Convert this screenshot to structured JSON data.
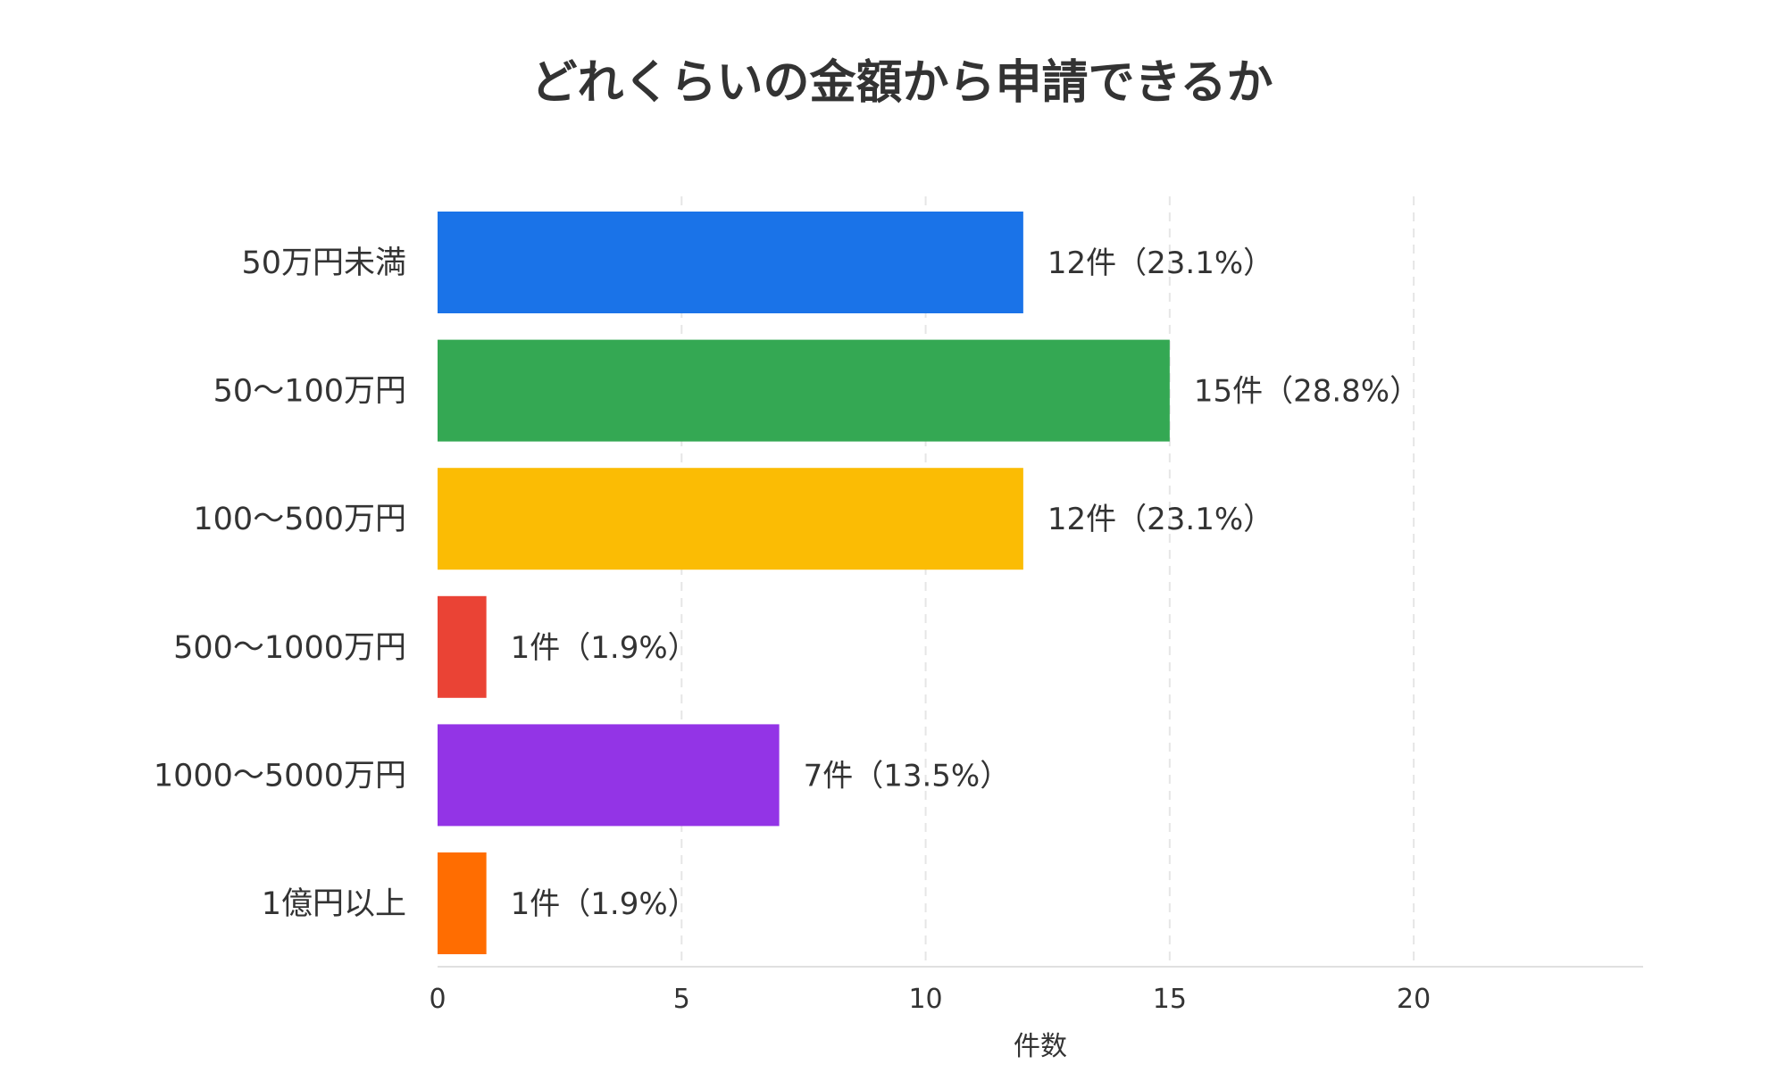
{
  "chart_data": {
    "type": "bar",
    "orientation": "horizontal",
    "title": "どれくらいの金額から申請できるか",
    "xlabel": "件数",
    "ylabel": "",
    "categories": [
      "50万円未満",
      "50〜100万円",
      "100〜500万円",
      "500〜1000万円",
      "1000〜5000万円",
      "1億円以上"
    ],
    "values": [
      12,
      15,
      12,
      1,
      7,
      1
    ],
    "value_labels": [
      "12件（23.1%）",
      "15件（28.8%）",
      "12件（23.1%）",
      "1件（1.9%）",
      "7件（13.5%）",
      "1件（1.9%）"
    ],
    "colors": [
      "#1a73e8",
      "#34a853",
      "#fbbc04",
      "#ea4335",
      "#9334e6",
      "#ff6d01"
    ],
    "xticks": [
      0,
      5,
      10,
      15,
      20
    ],
    "xlim": [
      0,
      24.7
    ],
    "grid": true,
    "legend": "none"
  }
}
